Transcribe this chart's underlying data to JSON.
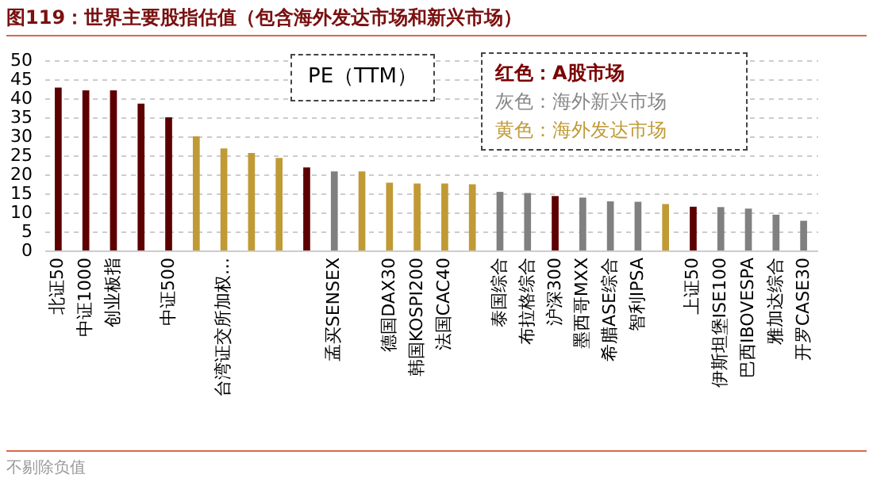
{
  "chart_data": {
    "type": "bar",
    "title": "图119：世界主要股指估值（包含海外发达市场和新兴市场）",
    "categories": [
      "北证50",
      "中证1000",
      "创业板指",
      null,
      "中证500",
      null,
      "台湾证交所加权…",
      null,
      null,
      null,
      "孟买SENSEX",
      null,
      "德国DAX30",
      "韩国KOSPI200",
      "法国CAC40",
      null,
      "泰国综合",
      "布拉格综合",
      "沪深300",
      "墨西哥MXX",
      "希腊ASE综合",
      "智利IPSA",
      null,
      "上证50",
      "伊斯坦堡ISE100",
      "巴西IBOVESPA",
      "雅加达综合",
      "开罗CASE30"
    ],
    "values": [
      42.8,
      42.1,
      42.1,
      38.6,
      35,
      30,
      26.8,
      25.6,
      24.3,
      21.8,
      20.8,
      20.8,
      17.8,
      17.6,
      17.6,
      17.4,
      15.4,
      15.1,
      14.3,
      13.9,
      12.9,
      12.8,
      12.2,
      11.5,
      11.4,
      11,
      9.4,
      7.8
    ],
    "colors": [
      "#5c0000",
      "#5c0000",
      "#5c0000",
      "#5c0000",
      "#5c0000",
      "#c09a35",
      "#c09a35",
      "#c09a35",
      "#c09a35",
      "#5c0000",
      "#808080",
      "#c09a35",
      "#c09a35",
      "#c09a35",
      "#c09a35",
      "#c09a35",
      "#808080",
      "#808080",
      "#5c0000",
      "#808080",
      "#808080",
      "#808080",
      "#c09a35",
      "#5c0000",
      "#808080",
      "#808080",
      "#808080",
      "#808080"
    ],
    "ylim": [
      0,
      50
    ],
    "yticks": [
      0,
      5,
      10,
      15,
      20,
      25,
      30,
      35,
      40,
      45,
      50
    ],
    "grid": "y",
    "annotations": [
      "PE（TTM）",
      "红色：A股市场",
      "灰色：海外新兴市场",
      "黄色：海外发达市场",
      "不剔除负值"
    ]
  }
}
